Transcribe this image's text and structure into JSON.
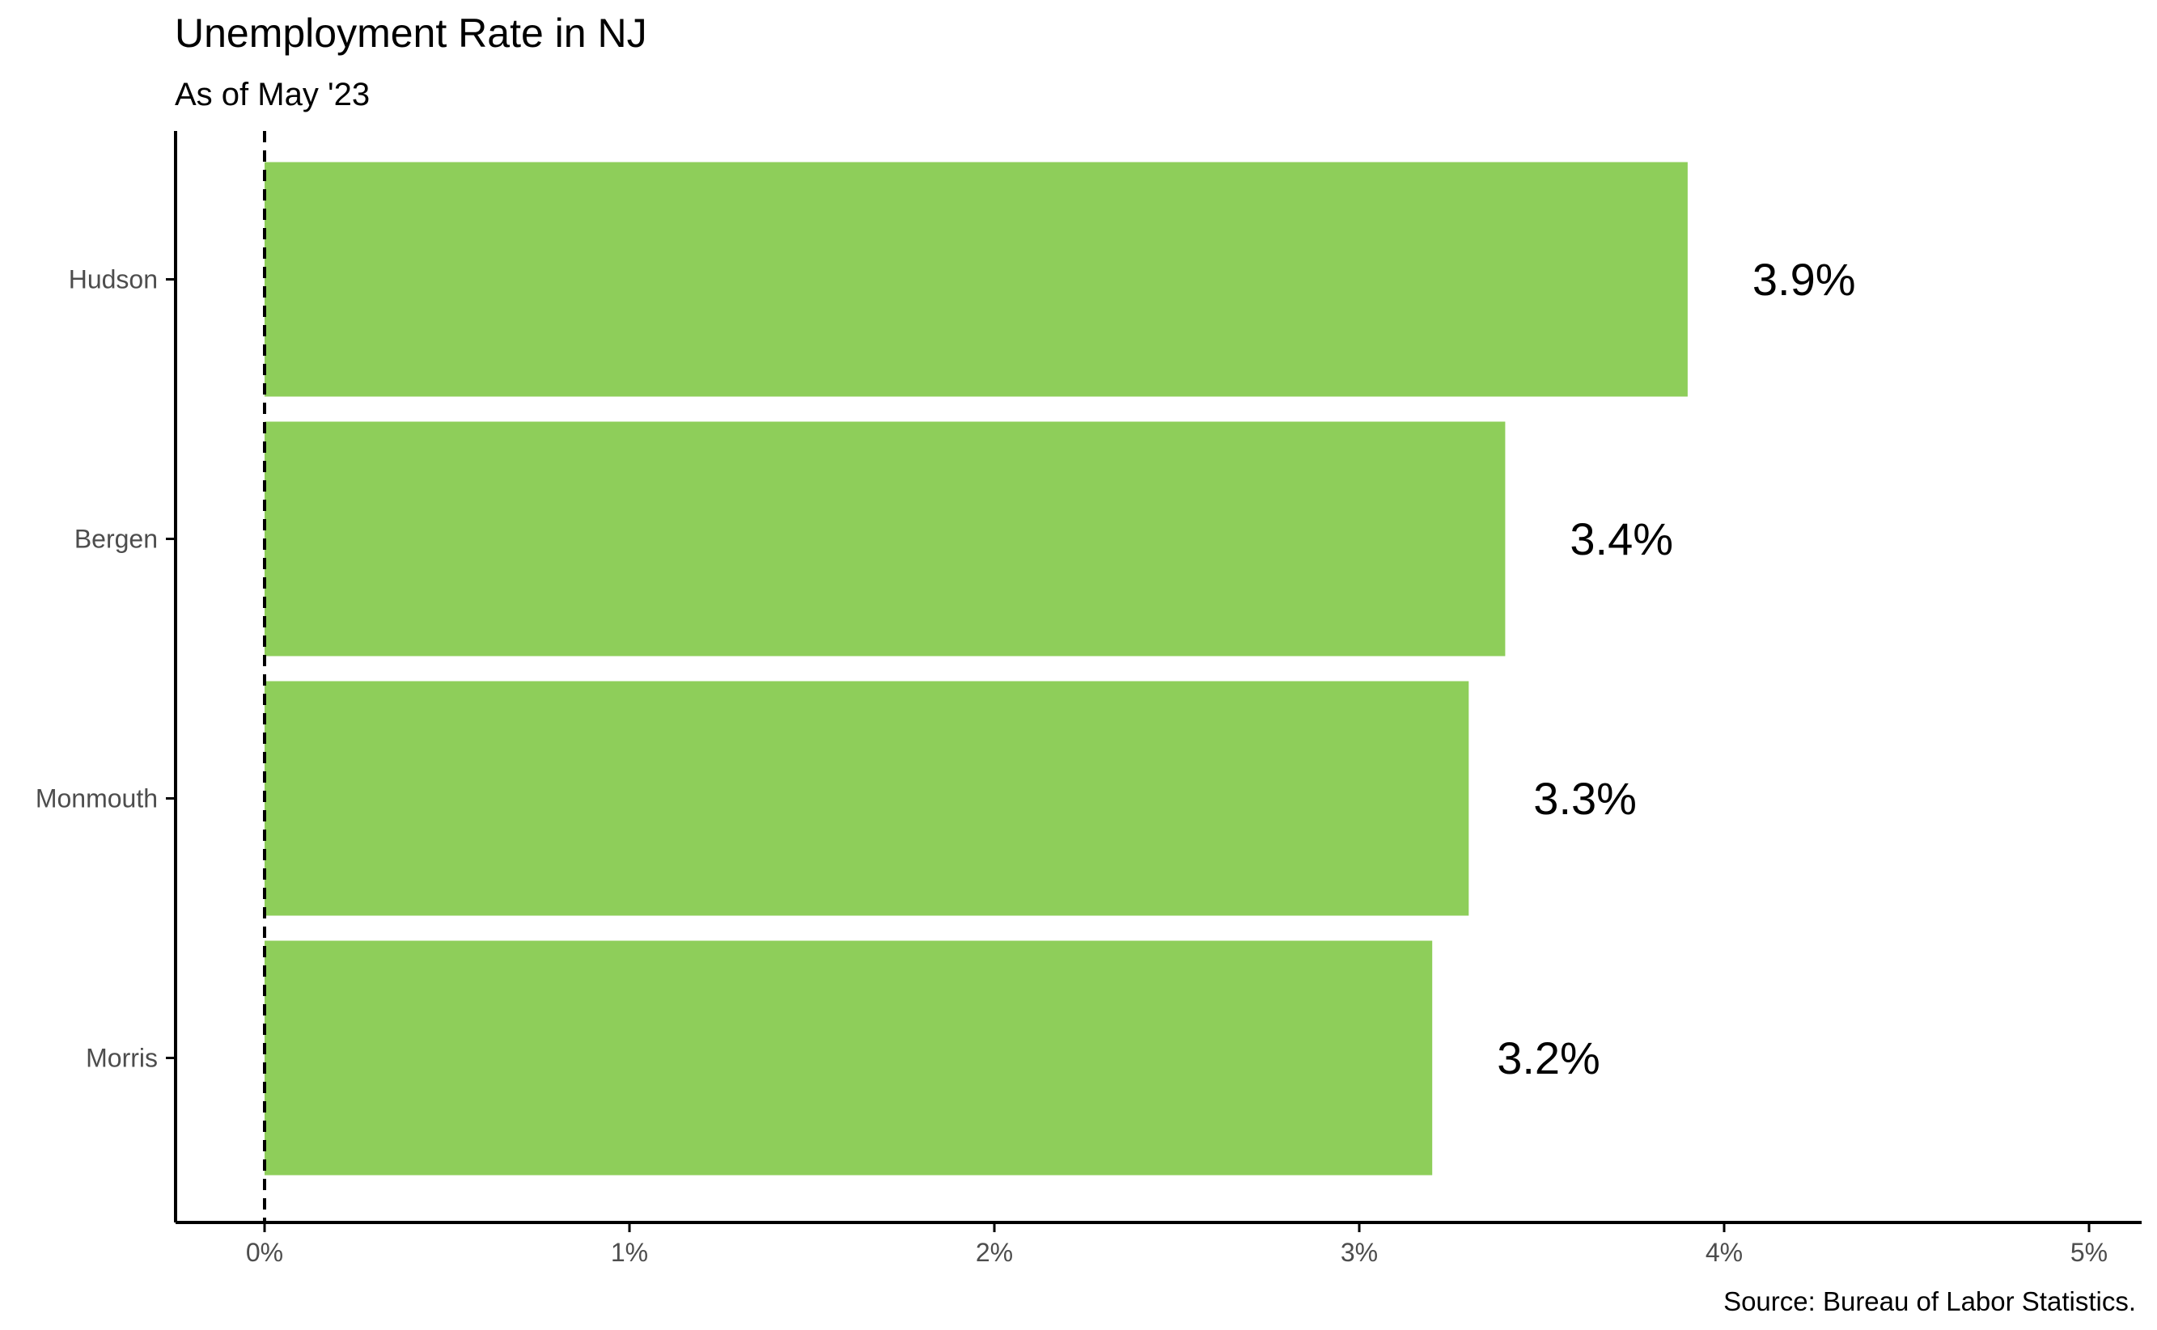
{
  "chart_data": {
    "type": "bar",
    "orientation": "horizontal",
    "title": "Unemployment Rate in NJ",
    "subtitle": "As of May '23",
    "caption": "Source: Bureau of Labor Statistics.",
    "categories": [
      "Hudson",
      "Bergen",
      "Monmouth",
      "Morris"
    ],
    "values": [
      3.9,
      3.4,
      3.3,
      3.2
    ],
    "data_labels": [
      "3.9%",
      "3.4%",
      "3.3%",
      "3.2%"
    ],
    "x_ticks": [
      0,
      1,
      2,
      3,
      4,
      5
    ],
    "x_tick_labels": [
      "0%",
      "1%",
      "2%",
      "3%",
      "4%",
      "5%"
    ],
    "xlim": [
      0,
      5
    ],
    "reference_line": {
      "x": 0,
      "style": "dashed"
    },
    "grid": false,
    "legend": "none",
    "bar_color": "#8ece5a",
    "axis_color": "#000000",
    "tick_label_color": "#4d4d4d"
  }
}
